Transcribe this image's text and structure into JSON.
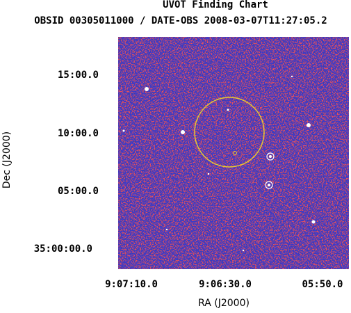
{
  "title": "UVOT Finding Chart",
  "subtitle": "OBSID 00305011000 / DATE-OBS 2008-03-07T11:27:05.2",
  "x_axis": {
    "label": "RA (J2000)",
    "ticks": [
      "9:07:10.0",
      "9:06:30.0",
      "05:50.0"
    ]
  },
  "y_axis": {
    "label": "Dec (J2000)",
    "ticks": [
      "15:00.0",
      "10:00.0",
      "05:00.0",
      "35:00:00.0"
    ]
  }
}
